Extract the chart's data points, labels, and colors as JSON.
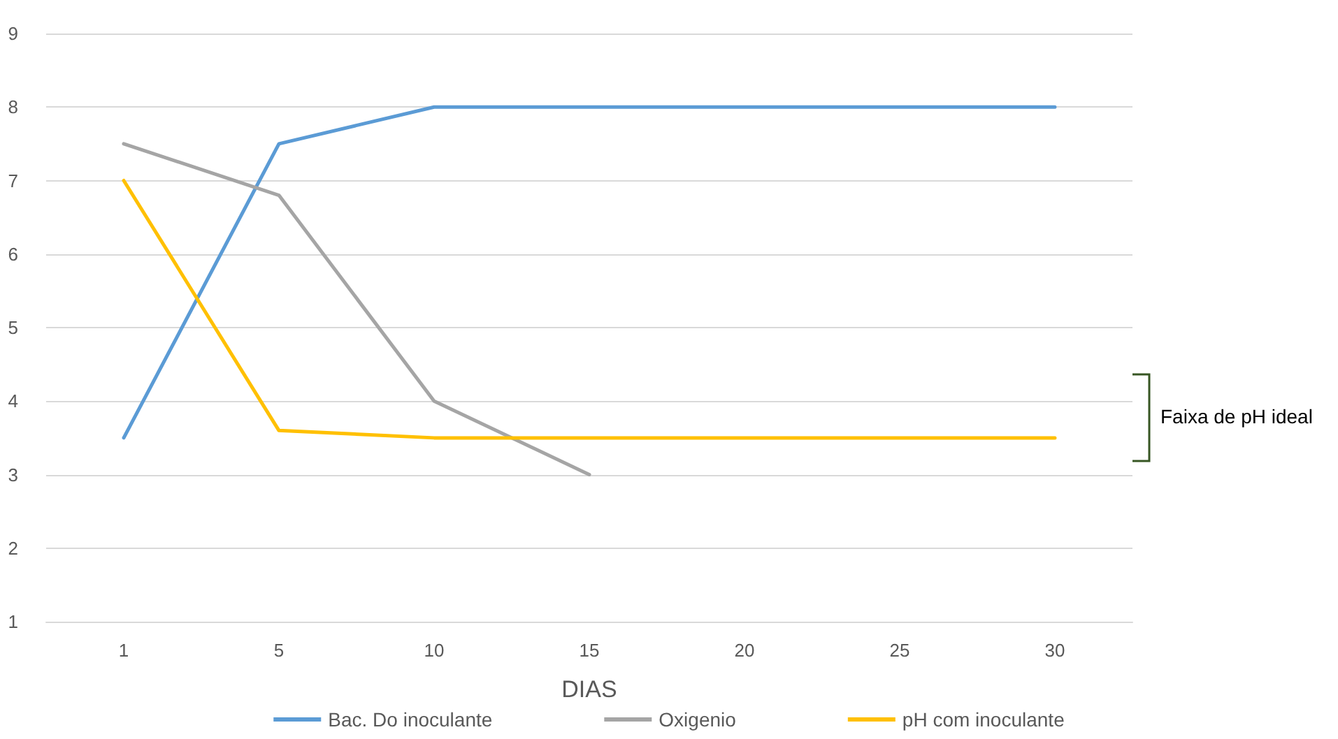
{
  "chart_data": {
    "type": "line",
    "xlabel": "DIAS",
    "categories": [
      "1",
      "5",
      "10",
      "15",
      "20",
      "25",
      "30"
    ],
    "series": [
      {
        "name": "Bac. Do inoculante",
        "color": "#5b9bd5",
        "values": [
          3.5,
          7.5,
          8,
          8,
          8,
          8,
          8
        ]
      },
      {
        "name": "Oxigenio",
        "color": "#a5a5a5",
        "values": [
          7.5,
          6.8,
          4,
          3,
          null,
          null,
          null
        ]
      },
      {
        "name": "pH com inoculante",
        "color": "#ffc000",
        "values": [
          7,
          3.6,
          3.5,
          3.5,
          3.5,
          3.5,
          3.5
        ]
      }
    ],
    "ylim": [
      1,
      9
    ],
    "yticks": [
      1,
      2,
      3,
      4,
      5,
      6,
      7,
      8,
      9
    ],
    "grid": "y",
    "legend": "bottom",
    "marker": "none",
    "line_style": "solid",
    "annotations": [
      "Faixa de pH ideal"
    ]
  }
}
